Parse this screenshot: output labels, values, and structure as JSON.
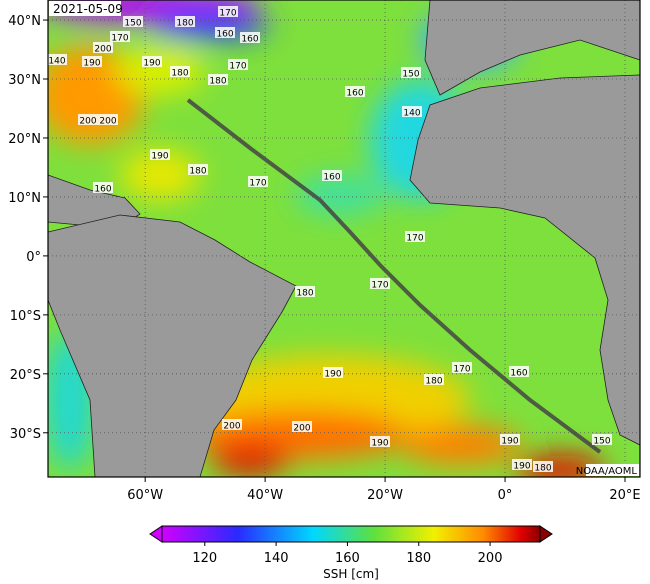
{
  "map": {
    "date": "2021-05-09",
    "credit": "NOAA/AOML",
    "lon_range": [
      -76.2,
      22.5
    ],
    "lat_range": [
      -37.5,
      43.4
    ],
    "lon_ticks": [
      {
        "value": -60,
        "label": "60°W"
      },
      {
        "value": -40,
        "label": "40°W"
      },
      {
        "value": -20,
        "label": "20°W"
      },
      {
        "value": 0,
        "label": "0°"
      },
      {
        "value": 20,
        "label": "20°E"
      }
    ],
    "lat_ticks": [
      {
        "value": 40,
        "label": "40°N"
      },
      {
        "value": 30,
        "label": "30°N"
      },
      {
        "value": 20,
        "label": "20°N"
      },
      {
        "value": 10,
        "label": "10°N"
      },
      {
        "value": 0,
        "label": "0°"
      },
      {
        "value": -10,
        "label": "10°S"
      },
      {
        "value": -20,
        "label": "20°S"
      },
      {
        "value": -30,
        "label": "30°S"
      }
    ],
    "contour_labels": [
      150,
      180,
      170,
      170,
      160,
      160,
      200,
      140,
      190,
      190,
      180,
      170,
      180,
      150,
      160,
      140,
      200,
      200,
      190,
      180,
      170,
      160,
      160,
      170,
      170,
      180,
      190,
      180,
      170,
      160,
      200,
      200,
      190,
      190,
      150,
      190,
      180
    ]
  },
  "colorbar": {
    "label": "SSH [cm]",
    "range": [
      108,
      214
    ],
    "ticks": [
      120,
      140,
      160,
      180,
      200
    ]
  }
}
